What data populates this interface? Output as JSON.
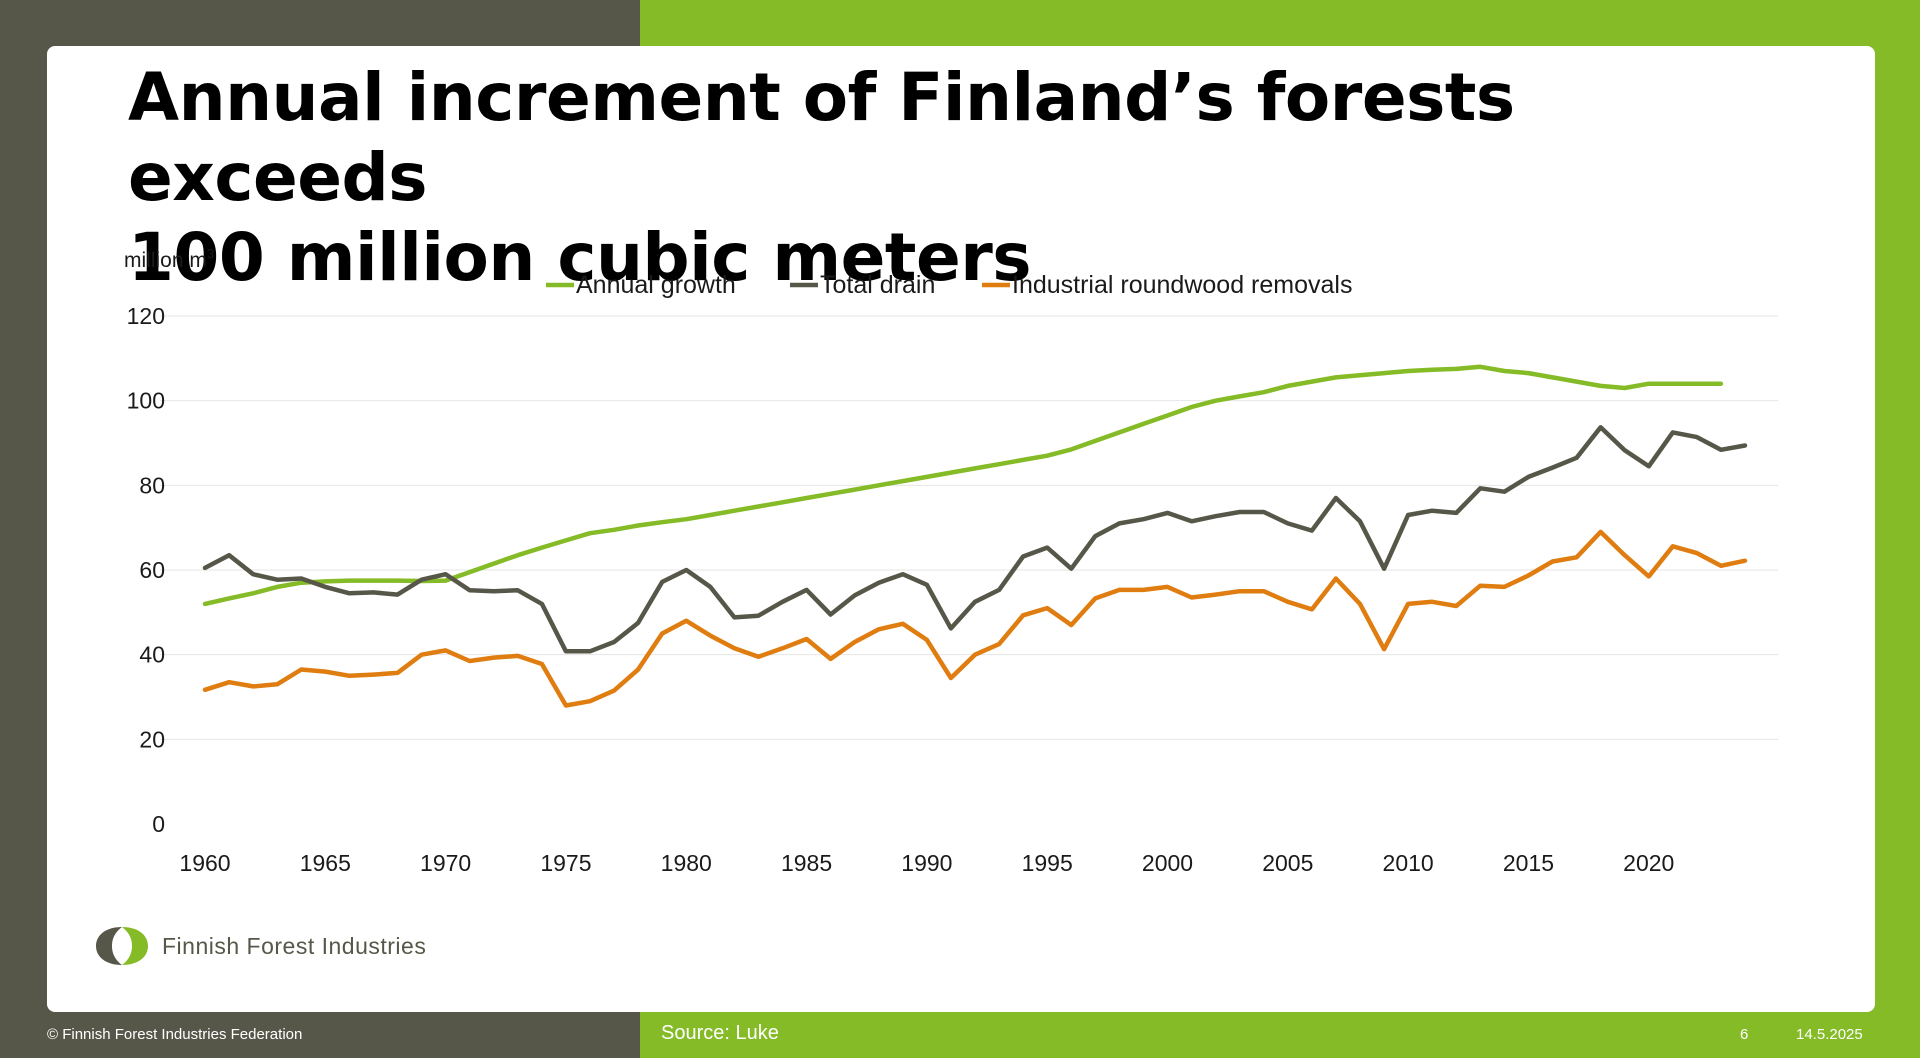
{
  "slide": {
    "title_line1": "Annual increment of Finland’s forests exceeds",
    "title_line2": "100 million cubic meters",
    "ylabel_text": "million m",
    "ylabel_sup": "3",
    "logo_text": "Finnish Forest Industries",
    "copyright": "© Finnish Forest Industries Federation",
    "source": "Source: Luke",
    "page_number": "6",
    "date": "14.5.2025"
  },
  "colors": {
    "dark_band": "#575749",
    "green_band": "#84bb26",
    "annual_growth": "#84bb26",
    "total_drain": "#575749",
    "industrial_removals": "#e07d10",
    "gridline": "#e6e6e6"
  },
  "chart_data": {
    "type": "line",
    "ylabel": "million m³",
    "ylim": [
      0,
      120
    ],
    "yticks": [
      0,
      20,
      40,
      60,
      80,
      100,
      120
    ],
    "xticks": [
      1960,
      1965,
      1970,
      1975,
      1980,
      1985,
      1990,
      1995,
      2000,
      2005,
      2010,
      2015,
      2020
    ],
    "xlim": [
      1960,
      2024
    ],
    "grid": true,
    "legend_position": "top-center",
    "series": [
      {
        "name": "Annual growth",
        "color": "#84bb26",
        "x": [
          1960,
          1961,
          1962,
          1963,
          1964,
          1965,
          1966,
          1967,
          1968,
          1969,
          1970,
          1971,
          1972,
          1973,
          1974,
          1975,
          1976,
          1977,
          1978,
          1979,
          1980,
          1981,
          1982,
          1983,
          1984,
          1985,
          1986,
          1987,
          1988,
          1989,
          1990,
          1991,
          1992,
          1993,
          1994,
          1995,
          1996,
          1997,
          1998,
          1999,
          2000,
          2001,
          2002,
          2003,
          2004,
          2005,
          2006,
          2007,
          2008,
          2009,
          2010,
          2011,
          2012,
          2013,
          2014,
          2015,
          2016,
          2017,
          2018,
          2019,
          2020,
          2021,
          2022,
          2023
        ],
        "values": [
          52,
          53.3,
          54.5,
          56,
          57,
          57.3,
          57.5,
          57.5,
          57.5,
          57.4,
          57.5,
          59.5,
          61.5,
          63.5,
          65.3,
          67,
          68.7,
          69.5,
          70.5,
          71.3,
          72,
          73,
          74,
          75,
          76,
          77,
          78,
          79,
          80,
          81,
          82,
          83,
          84,
          85,
          86,
          87,
          88.5,
          90.5,
          92.5,
          94.5,
          96.5,
          98.5,
          100,
          101,
          102,
          103.5,
          104.5,
          105.5,
          106,
          106.5,
          107,
          107.3,
          107.5,
          108,
          107,
          106.5,
          105.5,
          104.5,
          103.5,
          103,
          104,
          104,
          104,
          104
        ]
      },
      {
        "name": "Total drain",
        "color": "#575749",
        "x": [
          1960,
          1961,
          1962,
          1963,
          1964,
          1965,
          1966,
          1967,
          1968,
          1969,
          1970,
          1971,
          1972,
          1973,
          1974,
          1975,
          1976,
          1977,
          1978,
          1979,
          1980,
          1981,
          1982,
          1983,
          1984,
          1985,
          1986,
          1987,
          1988,
          1989,
          1990,
          1991,
          1992,
          1993,
          1994,
          1995,
          1996,
          1997,
          1998,
          1999,
          2000,
          2001,
          2002,
          2003,
          2004,
          2005,
          2006,
          2007,
          2008,
          2009,
          2010,
          2011,
          2012,
          2013,
          2014,
          2015,
          2016,
          2017,
          2018,
          2019,
          2020,
          2021,
          2022,
          2023,
          2024
        ],
        "values": [
          60.5,
          63.5,
          59,
          57.7,
          58,
          56,
          54.5,
          54.7,
          54.2,
          57.7,
          59,
          55.2,
          55,
          55.2,
          52,
          40.8,
          40.8,
          43,
          47.5,
          57.2,
          60,
          56,
          48.8,
          49.2,
          52.5,
          55.3,
          49.5,
          54,
          57,
          59,
          56.5,
          46.2,
          52.5,
          55.3,
          63.2,
          65.3,
          60.3,
          68,
          71,
          72,
          73.5,
          71.5,
          72.7,
          73.7,
          73.7,
          71,
          69.3,
          77,
          71.5,
          60.3,
          73,
          74,
          73.5,
          79.3,
          78.5,
          82,
          84.2,
          86.5,
          93.7,
          88.3,
          84.5,
          92.5,
          91.4,
          88.4,
          89.4
        ]
      },
      {
        "name": "Industrial roundwood removals",
        "color": "#e07d10",
        "x": [
          1960,
          1961,
          1962,
          1963,
          1964,
          1965,
          1966,
          1967,
          1968,
          1969,
          1970,
          1971,
          1972,
          1973,
          1974,
          1975,
          1976,
          1977,
          1978,
          1979,
          1980,
          1981,
          1982,
          1983,
          1984,
          1985,
          1986,
          1987,
          1988,
          1989,
          1990,
          1991,
          1992,
          1993,
          1994,
          1995,
          1996,
          1997,
          1998,
          1999,
          2000,
          2001,
          2002,
          2003,
          2004,
          2005,
          2006,
          2007,
          2008,
          2009,
          2010,
          2011,
          2012,
          2013,
          2014,
          2015,
          2016,
          2017,
          2018,
          2019,
          2020,
          2021,
          2022,
          2023,
          2024
        ],
        "values": [
          31.7,
          33.5,
          32.5,
          33,
          36.5,
          36,
          35,
          35.3,
          35.7,
          40,
          41,
          38.5,
          39.3,
          39.7,
          37.8,
          28,
          29,
          31.5,
          36.5,
          45,
          48,
          44.5,
          41.5,
          39.5,
          41.5,
          43.7,
          39,
          43,
          46,
          47.3,
          43.5,
          34.5,
          40,
          42.5,
          49.3,
          51,
          47,
          53.3,
          55.3,
          55.3,
          56,
          53.5,
          54.2,
          55,
          55,
          52.5,
          50.7,
          58,
          52,
          41.3,
          52,
          52.5,
          51.5,
          56.3,
          56,
          58.7,
          62,
          63,
          69,
          63.5,
          58.5,
          65.6,
          64,
          61,
          62.2
        ]
      }
    ]
  }
}
